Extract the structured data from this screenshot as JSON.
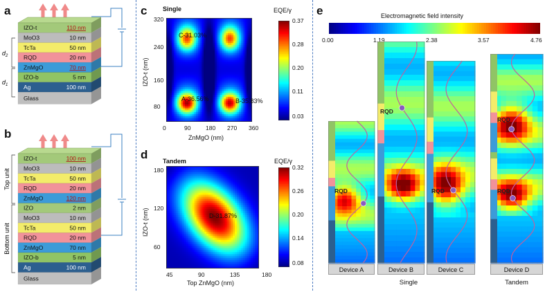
{
  "panels": {
    "a": "a",
    "b": "b",
    "c": "c",
    "d": "d",
    "e": "e"
  },
  "stackA": {
    "layers": [
      {
        "name": "IZO-t",
        "thick": "110 nm",
        "highlight": true,
        "color": "#a3c97a"
      },
      {
        "name": "MoO3",
        "thick": "10 nm",
        "highlight": false,
        "color": "#bcbcbc"
      },
      {
        "name": "TcTa",
        "thick": "50 nm",
        "highlight": false,
        "color": "#f3ec6a"
      },
      {
        "name": "RQD",
        "thick": "20 nm",
        "highlight": false,
        "color": "#f1929a"
      },
      {
        "name": "ZnMgO",
        "thick": "70 nm",
        "highlight": true,
        "color": "#3c9bd8"
      },
      {
        "name": "IZO-b",
        "thick": "5 nm",
        "highlight": false,
        "color": "#90c465"
      },
      {
        "name": "Ag",
        "thick": "100 nm",
        "highlight": false,
        "color": "#2c5f8f"
      },
      {
        "name": "Glass",
        "thick": "",
        "highlight": false,
        "color": "#bfbfbf"
      }
    ],
    "d2": "d2",
    "d1": "d1"
  },
  "stackB": {
    "layers": [
      {
        "name": "IZO-t",
        "thick": "100 nm",
        "highlight": true,
        "color": "#a3c97a"
      },
      {
        "name": "MoO3",
        "thick": "10 nm",
        "highlight": false,
        "color": "#bcbcbc"
      },
      {
        "name": "TcTa",
        "thick": "50 nm",
        "highlight": false,
        "color": "#f3ec6a"
      },
      {
        "name": "RQD",
        "thick": "20 nm",
        "highlight": false,
        "color": "#f1929a"
      },
      {
        "name": "ZnMgO",
        "thick": "120 nm",
        "highlight": true,
        "color": "#3c9bd8"
      },
      {
        "name": "IZO",
        "thick": "2 nm",
        "highlight": false,
        "color": "#a3c97a"
      },
      {
        "name": "MoO3",
        "thick": "10 nm",
        "highlight": false,
        "color": "#bcbcbc"
      },
      {
        "name": "TcTa",
        "thick": "50 nm",
        "highlight": false,
        "color": "#f3ec6a"
      },
      {
        "name": "RQD",
        "thick": "20 nm",
        "highlight": false,
        "color": "#f1929a"
      },
      {
        "name": "ZnMgO",
        "thick": "70 nm",
        "highlight": false,
        "color": "#3c9bd8"
      },
      {
        "name": "IZO-b",
        "thick": "5 nm",
        "highlight": false,
        "color": "#90c465"
      },
      {
        "name": "Ag",
        "thick": "100 nm",
        "highlight": false,
        "color": "#2c5f8f"
      },
      {
        "name": "Glass",
        "thick": "",
        "highlight": false,
        "color": "#bfbfbf"
      }
    ],
    "top_unit": "Top unit",
    "bottom_unit": "Bottom unit"
  },
  "plotC": {
    "title": "Single",
    "cb_title": "EQE/γ",
    "cb_ticks": [
      "0.37",
      "0.28",
      "0.20",
      "0.11",
      "0.03"
    ],
    "xlabel": "ZnMgO (nm)",
    "ylabel": "IZO-t (nm)",
    "xticks": [
      "0",
      "90",
      "180",
      "270",
      "360"
    ],
    "yticks": [
      "320",
      "240",
      "160",
      "80"
    ],
    "annotations": [
      "C-31.03%",
      "A-36.56%",
      "B-35.83%"
    ]
  },
  "plotD": {
    "title": "Tandem",
    "cb_title": "EQE/γ",
    "cb_ticks": [
      "0.32",
      "0.26",
      "0.20",
      "0.14",
      "0.08"
    ],
    "xlabel": "Top ZnMgO (nm)",
    "ylabel": "IZO-t (nm)",
    "xticks": [
      "45",
      "90",
      "135",
      "180"
    ],
    "yticks": [
      "180",
      "120",
      "60"
    ],
    "annotations": [
      "D-31.87%"
    ]
  },
  "panelE": {
    "cb_title": "Electromagnetic field intensity",
    "cb_ticks": [
      "0.00",
      "1.19",
      "2.38",
      "3.57",
      "4.76"
    ],
    "devices": [
      "Device A",
      "Device B",
      "Device C",
      "Device D"
    ],
    "rqd": "RQD",
    "single": "Single",
    "tandem": "Tandem"
  },
  "colors": {
    "jet_low": "#00007f",
    "jet_high": "#7f0000",
    "separator": "#4a7ac0"
  }
}
